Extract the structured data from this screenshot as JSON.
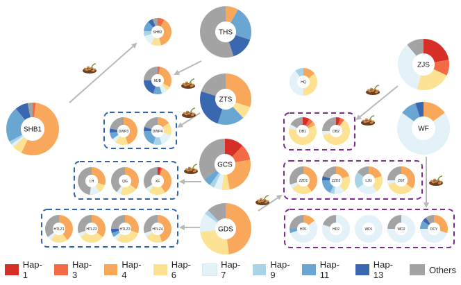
{
  "haplotypes": [
    {
      "name": "Hap-1",
      "color": "#d62f27"
    },
    {
      "name": "Hap-3",
      "color": "#f26b44"
    },
    {
      "name": "Hap-4",
      "color": "#f9a75a"
    },
    {
      "name": "Hap-6",
      "color": "#fde293"
    },
    {
      "name": "Hap-7",
      "color": "#e3f2f8"
    },
    {
      "name": "Hap-9",
      "color": "#a9d4e8"
    },
    {
      "name": "Hap-11",
      "color": "#6aa6d2"
    },
    {
      "name": "Hap-13",
      "color": "#3b67b0"
    },
    {
      "name": "Others",
      "color": "#a3a3a3"
    }
  ],
  "populations": [
    {
      "label": "SHB1",
      "values": [
        0,
        2,
        55,
        6,
        2,
        2,
        22,
        8,
        3
      ]
    },
    {
      "label": "SHB2",
      "values": [
        0,
        8,
        38,
        12,
        12,
        6,
        12,
        6,
        6
      ]
    },
    {
      "label": "THS",
      "values": [
        0,
        0,
        8,
        0,
        0,
        0,
        22,
        15,
        55
      ]
    },
    {
      "label": "MJB",
      "values": [
        0,
        3,
        30,
        5,
        7,
        0,
        10,
        20,
        25
      ]
    },
    {
      "label": "ZTS",
      "values": [
        0,
        0,
        30,
        8,
        0,
        0,
        17,
        25,
        20
      ]
    },
    {
      "label": "HQ",
      "values": [
        0,
        0,
        15,
        35,
        40,
        10,
        0,
        0,
        0
      ]
    },
    {
      "label": "ZJS",
      "values": [
        22,
        10,
        0,
        22,
        35,
        0,
        0,
        0,
        11
      ]
    },
    {
      "label": "WF",
      "values": [
        0,
        0,
        15,
        0,
        70,
        0,
        10,
        5,
        0
      ]
    },
    {
      "label": "DWP3",
      "values": [
        0,
        0,
        45,
        15,
        5,
        0,
        8,
        5,
        22
      ]
    },
    {
      "label": "DWP4",
      "values": [
        0,
        0,
        15,
        15,
        15,
        10,
        20,
        5,
        20
      ]
    },
    {
      "label": "DB1",
      "values": [
        8,
        5,
        5,
        60,
        5,
        0,
        0,
        0,
        17
      ]
    },
    {
      "label": "DB2",
      "values": [
        5,
        5,
        0,
        60,
        5,
        0,
        0,
        0,
        25
      ]
    },
    {
      "label": "GCS",
      "values": [
        12,
        10,
        25,
        5,
        5,
        3,
        5,
        0,
        35
      ]
    },
    {
      "label": "LH",
      "values": [
        0,
        0,
        30,
        10,
        12,
        0,
        0,
        0,
        48
      ]
    },
    {
      "label": "QG",
      "values": [
        0,
        0,
        35,
        20,
        5,
        0,
        0,
        0,
        40
      ]
    },
    {
      "label": "XF",
      "values": [
        4,
        2,
        35,
        20,
        5,
        0,
        0,
        0,
        34
      ]
    },
    {
      "label": "ZZD1",
      "values": [
        0,
        0,
        40,
        25,
        5,
        0,
        0,
        0,
        30
      ]
    },
    {
      "label": "ZZD2",
      "values": [
        0,
        0,
        20,
        20,
        12,
        5,
        18,
        5,
        20
      ]
    },
    {
      "label": "LJG",
      "values": [
        0,
        0,
        20,
        20,
        25,
        20,
        0,
        0,
        15
      ]
    },
    {
      "label": "ZGT",
      "values": [
        0,
        0,
        35,
        35,
        5,
        0,
        0,
        0,
        25
      ]
    },
    {
      "label": "GDS",
      "values": [
        0,
        0,
        48,
        25,
        12,
        3,
        0,
        0,
        12
      ]
    },
    {
      "label": "HTLZ1",
      "values": [
        0,
        0,
        40,
        20,
        5,
        0,
        0,
        0,
        35
      ]
    },
    {
      "label": "HTLZ2",
      "values": [
        0,
        0,
        35,
        30,
        5,
        0,
        0,
        0,
        30
      ]
    },
    {
      "label": "HTLZ3",
      "values": [
        0,
        0,
        30,
        30,
        5,
        0,
        5,
        5,
        25
      ]
    },
    {
      "label": "HTLZ4",
      "values": [
        0,
        0,
        45,
        20,
        5,
        0,
        0,
        0,
        30
      ]
    },
    {
      "label": "HD1",
      "values": [
        0,
        0,
        15,
        0,
        55,
        0,
        5,
        0,
        25
      ]
    },
    {
      "label": "HD2",
      "values": [
        0,
        0,
        0,
        0,
        80,
        0,
        0,
        0,
        20
      ]
    },
    {
      "label": "WD1",
      "values": [
        0,
        0,
        0,
        0,
        100,
        0,
        0,
        0,
        0
      ]
    },
    {
      "label": "WD2",
      "values": [
        0,
        0,
        0,
        0,
        75,
        0,
        0,
        0,
        25
      ]
    },
    {
      "label": "DCY",
      "values": [
        0,
        0,
        30,
        0,
        45,
        0,
        10,
        5,
        10
      ]
    }
  ]
}
